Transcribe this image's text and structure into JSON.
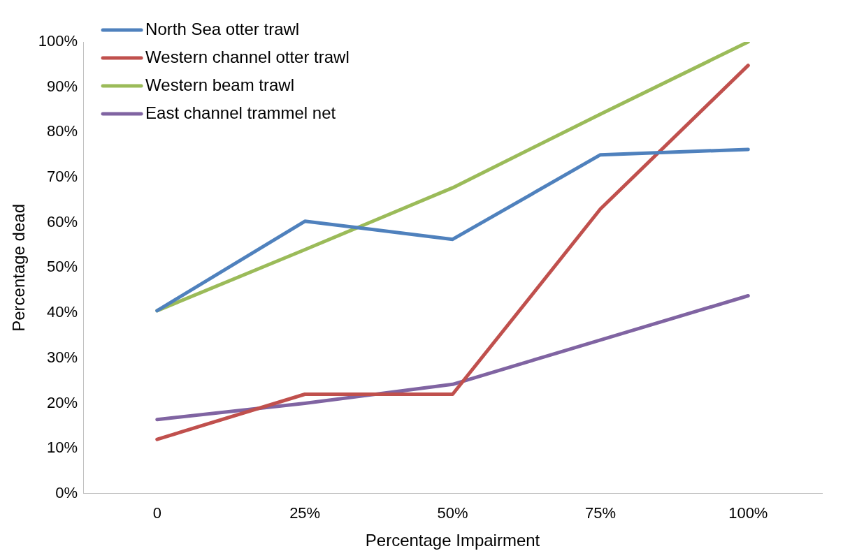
{
  "chart_data": {
    "type": "line",
    "xlabel": "Percentage Impairment",
    "ylabel": "Percentage dead",
    "categories": [
      "0",
      "25%",
      "50%",
      "75%",
      "100%"
    ],
    "series": [
      {
        "name": "North Sea otter trawl",
        "color": "#4f81bd",
        "values": [
          40.5,
          60.3,
          56.3,
          75,
          76.2
        ]
      },
      {
        "name": "Western channel otter trawl",
        "color": "#c0504d",
        "values": [
          12,
          22,
          22,
          63,
          94.8
        ]
      },
      {
        "name": "Western beam trawl",
        "color": "#9bbb59",
        "values": [
          40.5,
          54,
          67.7,
          84,
          100
        ]
      },
      {
        "name": "East channel trammel net",
        "color": "#8064a2",
        "values": [
          16.4,
          20,
          24.2,
          34,
          43.8
        ]
      }
    ],
    "ylim": [
      0,
      100
    ],
    "yticks": [
      {
        "value": 0,
        "label": "0%"
      },
      {
        "value": 10,
        "label": "10%"
      },
      {
        "value": 20,
        "label": "20%"
      },
      {
        "value": 30,
        "label": "30%"
      },
      {
        "value": 40,
        "label": "40%"
      },
      {
        "value": 50,
        "label": "50%"
      },
      {
        "value": 60,
        "label": "60%"
      },
      {
        "value": 70,
        "label": "70%"
      },
      {
        "value": 80,
        "label": "80%"
      },
      {
        "value": 90,
        "label": "90%"
      },
      {
        "value": 100,
        "label": "100%"
      }
    ],
    "grid": false,
    "legend": "top left",
    "marker": "none",
    "line_style": "solid"
  }
}
